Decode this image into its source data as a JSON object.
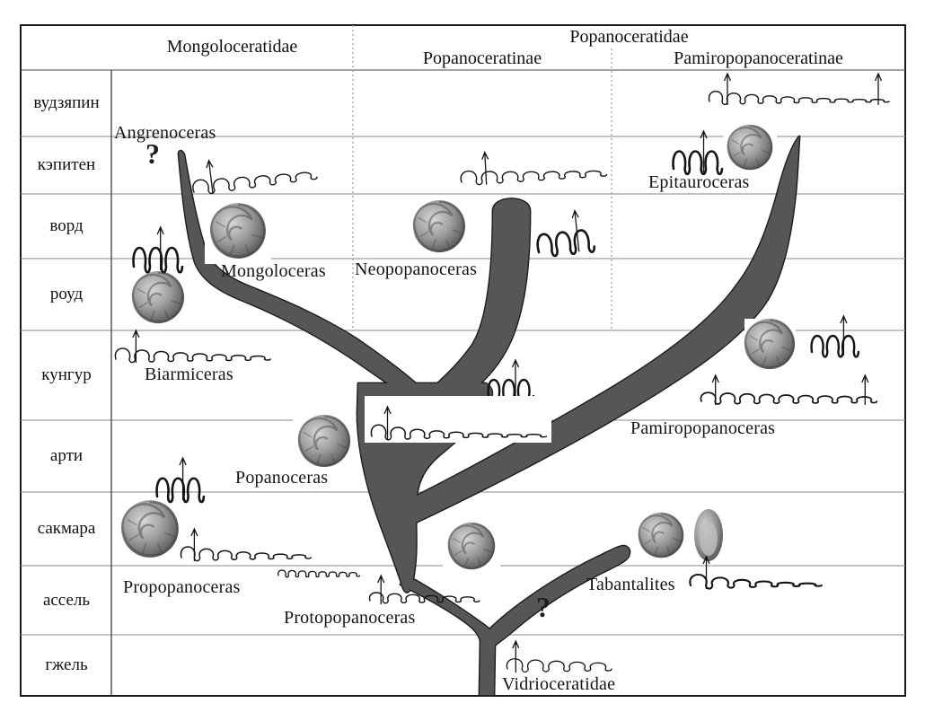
{
  "diagram": {
    "header": {
      "family_left": "Mongoloceratidae",
      "family_right": "Popanoceratidae",
      "subfamily_left": "Popanoceratinae",
      "subfamily_right": "Pamiropopanoceratinae"
    },
    "stages": [
      {
        "label": "вудзяпин"
      },
      {
        "label": "кэпитен"
      },
      {
        "label": "ворд"
      },
      {
        "label": "роуд"
      },
      {
        "label": "кунгур"
      },
      {
        "label": "арти"
      },
      {
        "label": "сакмара"
      },
      {
        "label": "ассель"
      },
      {
        "label": "гжель"
      }
    ],
    "taxa": [
      {
        "label": "Angrenoceras"
      },
      {
        "label": "Mongoloceras"
      },
      {
        "label": "Neopopanoceras"
      },
      {
        "label": "Biarmiceras"
      },
      {
        "label": "Popanoceras"
      },
      {
        "label": "Propopanoceras"
      },
      {
        "label": "Protopopanoceras"
      },
      {
        "label": "Tabantalites"
      },
      {
        "label": "Vidrioceratidae"
      },
      {
        "label": "Epitauroceras"
      },
      {
        "label": "Pamiropopanoceras"
      }
    ],
    "marks": {
      "question_mongoloceratidae": "?",
      "question_tabantalites": "?"
    },
    "colors": {
      "branch_fill": "#565656",
      "branch_outline": "#1d1d1d",
      "grid_line": "#8a8a8a",
      "border": "#000000",
      "suture_ink": "#141414"
    }
  }
}
